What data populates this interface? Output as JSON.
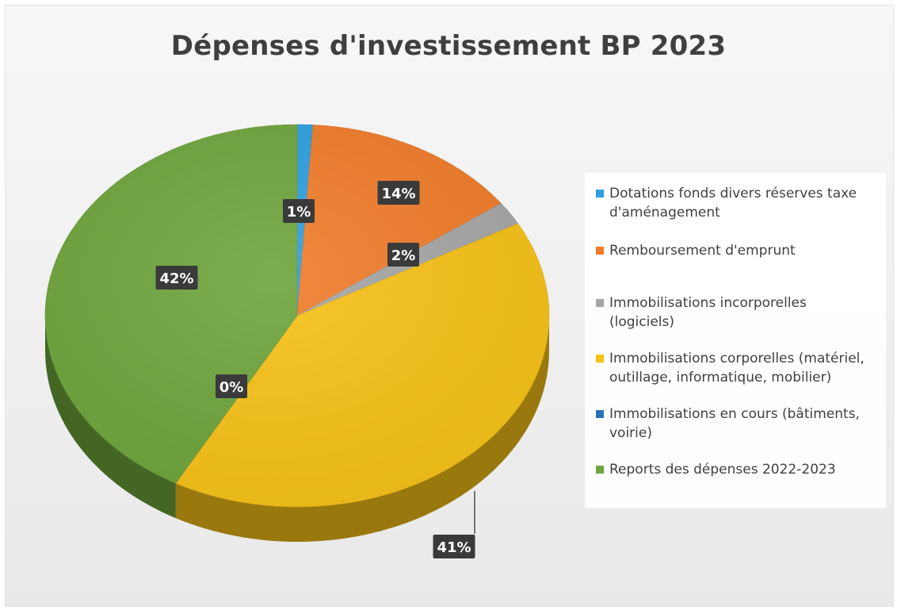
{
  "chart_data": {
    "type": "pie",
    "title": "Dépenses d'investissement BP 2023",
    "slices": [
      {
        "label": "Dotations fonds divers réserves taxe d'aménagement",
        "value": 1,
        "data_label": "1%",
        "color": "#2e9fdf"
      },
      {
        "label": "Remboursement d'emprunt",
        "value": 14,
        "data_label": "14%",
        "color": "#f07c2a"
      },
      {
        "label": "Immobilisations incorporelles (logiciels)",
        "value": 2,
        "data_label": "2%",
        "color": "#a6a6a6"
      },
      {
        "label": "Immobilisations corporelles (matériel, outillage, informatique, mobilier)",
        "value": 41,
        "data_label": "41%",
        "color": "#f6c117"
      },
      {
        "label": "Immobilisations en cours (bâtiments, voirie)",
        "value": 0,
        "data_label": "0%",
        "color": "#2b71b8"
      },
      {
        "label": "Reports des dépenses 2022-2023",
        "value": 42,
        "data_label": "42%",
        "color": "#6ea43c"
      }
    ],
    "legend_position": "right"
  }
}
